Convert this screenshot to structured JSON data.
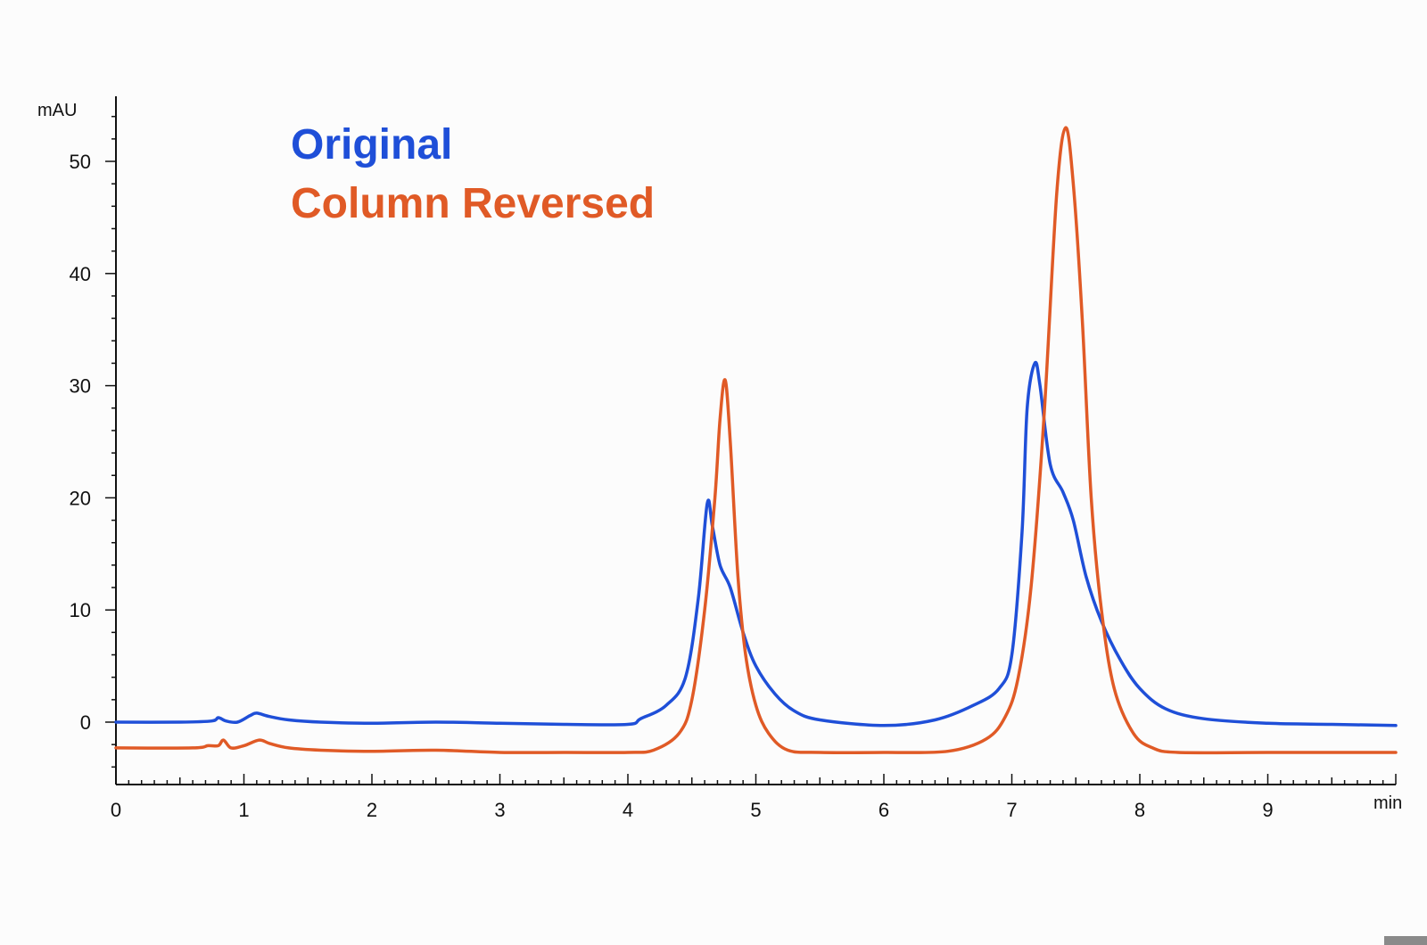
{
  "chart_data": {
    "type": "line",
    "title": "",
    "xlabel": "",
    "ylabel": "",
    "x_unit_label": "min",
    "y_unit_label": "mAU",
    "xlim": [
      0,
      10
    ],
    "ylim": [
      -5.5,
      55
    ],
    "x_ticks": [
      0,
      1,
      2,
      3,
      4,
      5,
      6,
      7,
      8,
      9
    ],
    "y_ticks": [
      0,
      10,
      20,
      30,
      40,
      50
    ],
    "grid": false,
    "legend_position": "top-left",
    "series": [
      {
        "name": "Original",
        "color": "#1f4fd8",
        "points": [
          [
            0,
            0
          ],
          [
            0.5,
            0
          ],
          [
            0.75,
            0.1
          ],
          [
            0.8,
            0.4
          ],
          [
            0.86,
            0.1
          ],
          [
            0.95,
            0
          ],
          [
            1.05,
            0.6
          ],
          [
            1.1,
            0.8
          ],
          [
            1.2,
            0.5
          ],
          [
            1.35,
            0.2
          ],
          [
            1.6,
            0
          ],
          [
            2.0,
            -0.1
          ],
          [
            2.5,
            0
          ],
          [
            3.0,
            -0.1
          ],
          [
            3.5,
            -0.2
          ],
          [
            4.0,
            -0.2
          ],
          [
            4.1,
            0.3
          ],
          [
            4.3,
            1.5
          ],
          [
            4.45,
            4.0
          ],
          [
            4.55,
            11.0
          ],
          [
            4.62,
            19.5
          ],
          [
            4.66,
            17.5
          ],
          [
            4.72,
            14.0
          ],
          [
            4.8,
            12.0
          ],
          [
            4.9,
            8.0
          ],
          [
            5.0,
            5.0
          ],
          [
            5.15,
            2.5
          ],
          [
            5.3,
            1.0
          ],
          [
            5.5,
            0.2
          ],
          [
            6.0,
            -0.3
          ],
          [
            6.4,
            0.2
          ],
          [
            6.7,
            1.5
          ],
          [
            6.9,
            3.0
          ],
          [
            7.0,
            6.0
          ],
          [
            7.08,
            17.0
          ],
          [
            7.12,
            28.0
          ],
          [
            7.18,
            32.0
          ],
          [
            7.22,
            30.0
          ],
          [
            7.3,
            23.0
          ],
          [
            7.4,
            20.5
          ],
          [
            7.48,
            18.0
          ],
          [
            7.58,
            13.0
          ],
          [
            7.7,
            9.0
          ],
          [
            7.85,
            5.5
          ],
          [
            8.0,
            3.0
          ],
          [
            8.2,
            1.2
          ],
          [
            8.5,
            0.3
          ],
          [
            9.0,
            -0.1
          ],
          [
            9.5,
            -0.2
          ],
          [
            10.0,
            -0.3
          ]
        ]
      },
      {
        "name": "Column Reversed",
        "color": "#e05a26",
        "points": [
          [
            0,
            -2.3
          ],
          [
            0.6,
            -2.3
          ],
          [
            0.72,
            -2.1
          ],
          [
            0.8,
            -2.1
          ],
          [
            0.84,
            -1.6
          ],
          [
            0.9,
            -2.3
          ],
          [
            1.0,
            -2.1
          ],
          [
            1.12,
            -1.6
          ],
          [
            1.2,
            -1.9
          ],
          [
            1.35,
            -2.3
          ],
          [
            1.6,
            -2.5
          ],
          [
            2.0,
            -2.6
          ],
          [
            2.5,
            -2.5
          ],
          [
            3.0,
            -2.7
          ],
          [
            3.5,
            -2.7
          ],
          [
            4.0,
            -2.7
          ],
          [
            4.2,
            -2.5
          ],
          [
            4.4,
            -1.0
          ],
          [
            4.5,
            2.0
          ],
          [
            4.6,
            10.0
          ],
          [
            4.68,
            20.0
          ],
          [
            4.72,
            27.0
          ],
          [
            4.76,
            30.5
          ],
          [
            4.8,
            25.0
          ],
          [
            4.86,
            13.0
          ],
          [
            4.92,
            6.0
          ],
          [
            5.0,
            1.5
          ],
          [
            5.1,
            -1.0
          ],
          [
            5.25,
            -2.5
          ],
          [
            5.5,
            -2.7
          ],
          [
            6.0,
            -2.7
          ],
          [
            6.5,
            -2.6
          ],
          [
            6.8,
            -1.5
          ],
          [
            6.95,
            0.5
          ],
          [
            7.05,
            4.0
          ],
          [
            7.15,
            12.0
          ],
          [
            7.25,
            27.0
          ],
          [
            7.35,
            47.0
          ],
          [
            7.42,
            53.0
          ],
          [
            7.48,
            48.0
          ],
          [
            7.55,
            36.0
          ],
          [
            7.62,
            20.0
          ],
          [
            7.7,
            10.0
          ],
          [
            7.8,
            3.0
          ],
          [
            7.95,
            -1.0
          ],
          [
            8.1,
            -2.3
          ],
          [
            8.3,
            -2.7
          ],
          [
            9.0,
            -2.7
          ],
          [
            10.0,
            -2.7
          ]
        ]
      }
    ]
  },
  "legend": {
    "items": [
      {
        "label": "Original",
        "color": "#1f4fd8"
      },
      {
        "label": "Column Reversed",
        "color": "#e05a26"
      }
    ]
  }
}
